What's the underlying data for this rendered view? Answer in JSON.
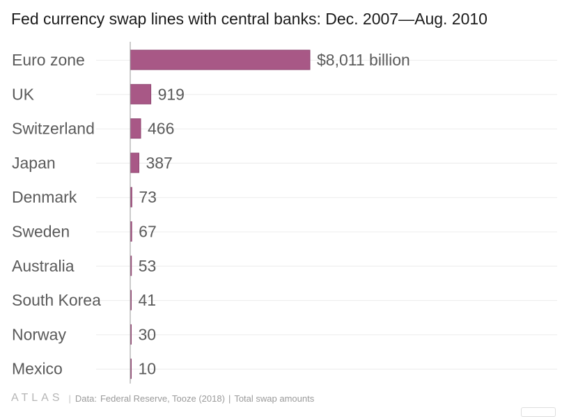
{
  "chart_data": {
    "type": "bar",
    "orientation": "horizontal",
    "title": "Fed currency swap lines with central banks: Dec. 2007—Aug. 2010",
    "xlabel": "",
    "ylabel": "",
    "unit": "billion",
    "categories": [
      "Euro zone",
      "UK",
      "Switzerland",
      "Japan",
      "Denmark",
      "Sweden",
      "Australia",
      "South Korea",
      "Norway",
      "Mexico"
    ],
    "values": [
      8011,
      919,
      466,
      387,
      73,
      67,
      53,
      41,
      30,
      10
    ],
    "value_labels": [
      "$8,011 billion",
      "919",
      "466",
      "387",
      "73",
      "67",
      "53",
      "41",
      "30",
      "10"
    ],
    "xlim": [
      0,
      8011
    ],
    "bar_color": "#a85886"
  },
  "footer": {
    "logo": "ATLAS",
    "separator": "|",
    "source_label": "Data:",
    "source": "Federal Reserve, Tooze (2018)",
    "note": "Total swap amounts"
  }
}
